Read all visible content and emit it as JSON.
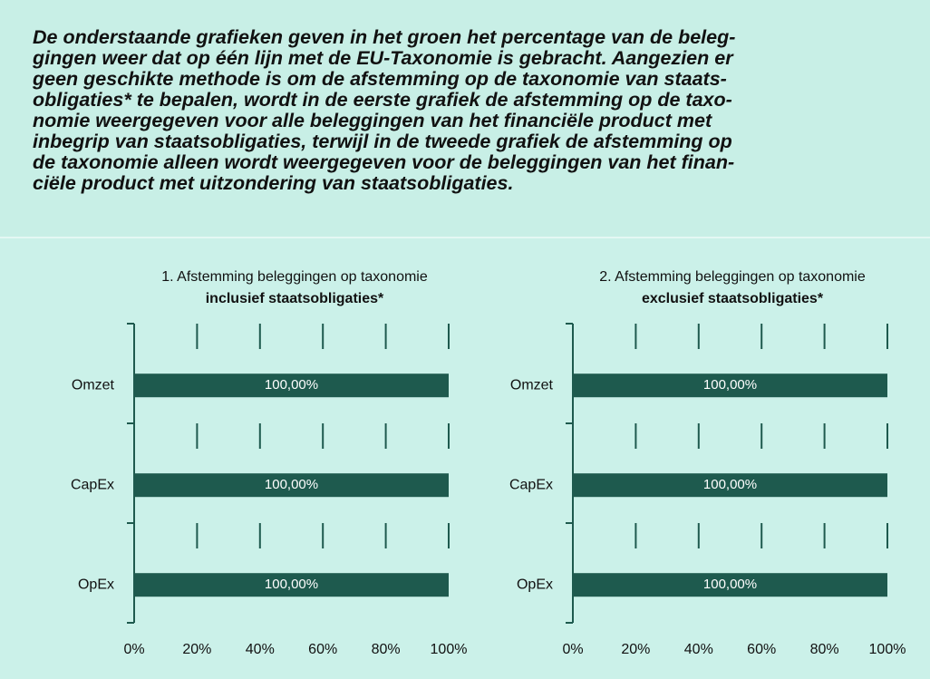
{
  "intro_lines": [
    "De onderstaande grafieken geven in het groen het percentage van de beleg-",
    "gingen weer dat op één lijn met de EU-Taxonomie is gebracht. Aangezien er",
    "geen geschikte methode is om de afstemming op de taxonomie van staats-",
    "obligaties* te bepalen, wordt in de eerste grafiek de afstemming op de taxo-",
    "nomie weergegeven voor alle beleggingen van het financiële product met",
    "inbegrip van staatsobligaties, terwijl in de tweede grafiek de afstemming op",
    "de taxonomie alleen wordt weergegeven voor de beleggingen van het finan-",
    "ciële product met uitzondering van staatsobligaties."
  ],
  "chart_data": [
    {
      "type": "bar",
      "orientation": "horizontal",
      "title": "1. Afstemming beleggingen op taxonomie",
      "subtitle": "inclusief staatsobligaties*",
      "categories": [
        "Omzet",
        "CapEx",
        "OpEx"
      ],
      "values": [
        100,
        100,
        100
      ],
      "value_labels": [
        "100,00%",
        "100,00%",
        "100,00%"
      ],
      "color": "#1e5a4e",
      "xlim": [
        0,
        100
      ],
      "xticks": [
        {
          "value": 0,
          "label": "0%"
        },
        {
          "value": 20,
          "label": "20%"
        },
        {
          "value": 40,
          "label": "40%"
        },
        {
          "value": 60,
          "label": "60%"
        },
        {
          "value": 80,
          "label": "80%"
        },
        {
          "value": 100,
          "label": "100%"
        }
      ],
      "grid": true
    },
    {
      "type": "bar",
      "orientation": "horizontal",
      "title": "2. Afstemming beleggingen op taxonomie",
      "subtitle": "exclusief staatsobligaties*",
      "categories": [
        "Omzet",
        "CapEx",
        "OpEx"
      ],
      "values": [
        100,
        100,
        100
      ],
      "value_labels": [
        "100,00%",
        "100,00%",
        "100,00%"
      ],
      "color": "#1e5a4e",
      "xlim": [
        0,
        100
      ],
      "xticks": [
        {
          "value": 0,
          "label": "0%"
        },
        {
          "value": 20,
          "label": "20%"
        },
        {
          "value": 40,
          "label": "40%"
        },
        {
          "value": 60,
          "label": "60%"
        },
        {
          "value": 80,
          "label": "80%"
        },
        {
          "value": 100,
          "label": "100%"
        }
      ],
      "grid": true
    }
  ]
}
